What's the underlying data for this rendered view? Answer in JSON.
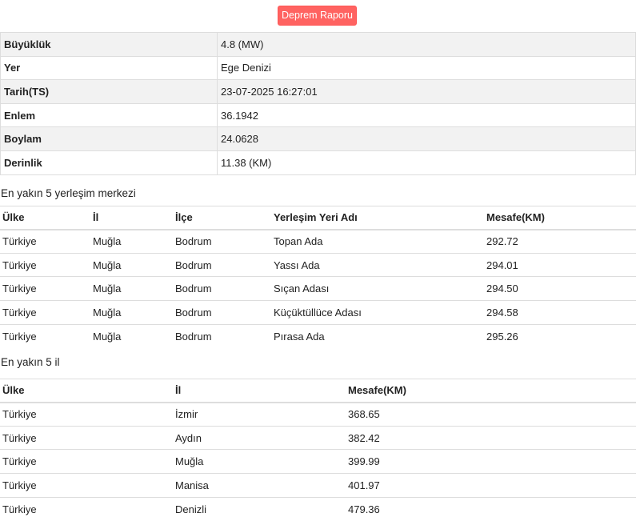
{
  "button": "Deprem Raporu",
  "info": [
    {
      "label": "Büyüklük",
      "value": "4.8 (MW)"
    },
    {
      "label": "Yer",
      "value": "Ege Denizi"
    },
    {
      "label": "Tarih(TS)",
      "value": "23-07-2025 16:27:01"
    },
    {
      "label": "Enlem",
      "value": "36.1942"
    },
    {
      "label": "Boylam",
      "value": "24.0628"
    },
    {
      "label": "Derinlik",
      "value": "11.38 (KM)"
    }
  ],
  "settlements": {
    "title": "En yakın 5 yerleşim merkezi",
    "headers": [
      "Ülke",
      "İl",
      "İlçe",
      "Yerleşim Yeri Adı",
      "Mesafe(KM)"
    ],
    "rows": [
      [
        "Türkiye",
        "Muğla",
        "Bodrum",
        "Topan Ada",
        "292.72"
      ],
      [
        "Türkiye",
        "Muğla",
        "Bodrum",
        "Yassı Ada",
        "294.01"
      ],
      [
        "Türkiye",
        "Muğla",
        "Bodrum",
        "Sıçan Adası",
        "294.50"
      ],
      [
        "Türkiye",
        "Muğla",
        "Bodrum",
        "Küçüktüllüce Adası",
        "294.58"
      ],
      [
        "Türkiye",
        "Muğla",
        "Bodrum",
        "Pırasa Ada",
        "295.26"
      ]
    ]
  },
  "provinces": {
    "title": "En yakın 5 il",
    "headers": [
      "Ülke",
      "İl",
      "Mesafe(KM)"
    ],
    "rows": [
      [
        "Türkiye",
        "İzmir",
        "368.65"
      ],
      [
        "Türkiye",
        "Aydın",
        "382.42"
      ],
      [
        "Türkiye",
        "Muğla",
        "399.99"
      ],
      [
        "Türkiye",
        "Manisa",
        "401.97"
      ],
      [
        "Türkiye",
        "Denizli",
        "479.36"
      ]
    ]
  }
}
